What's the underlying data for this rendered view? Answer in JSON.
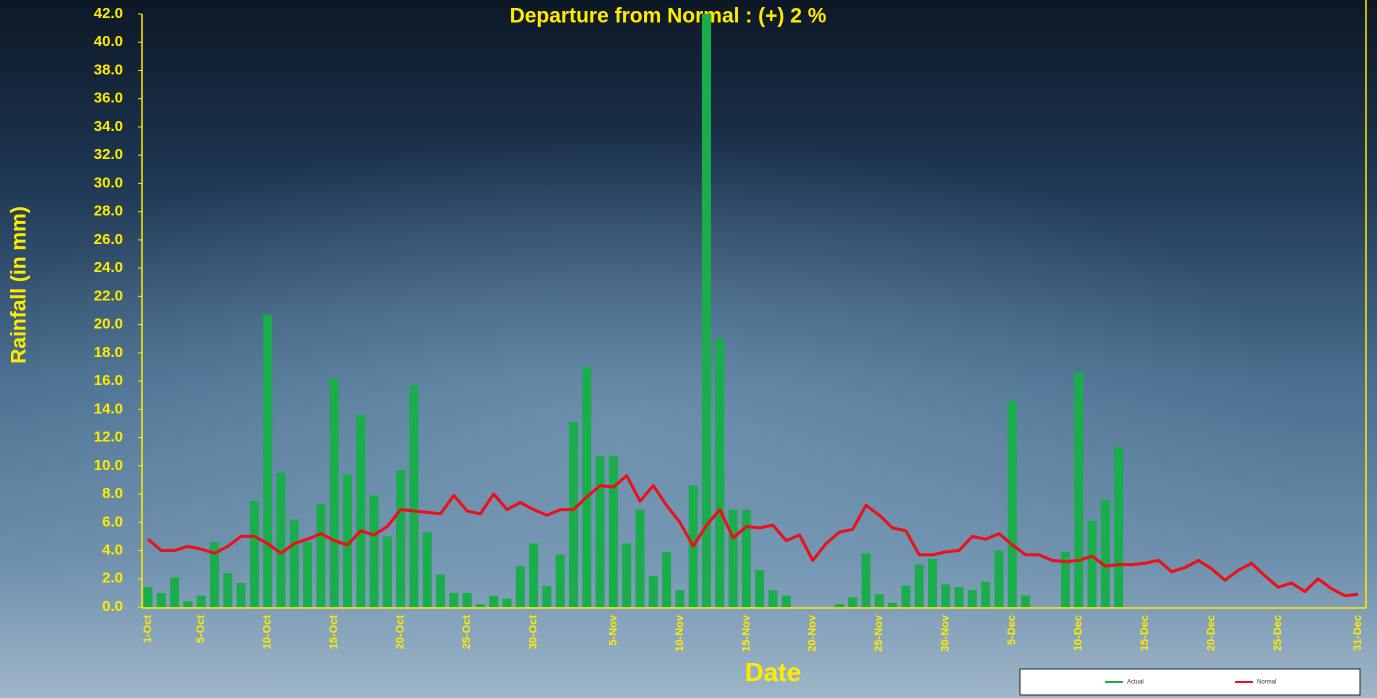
{
  "chart_data": {
    "type": "bar-line",
    "title": "Departure from Normal : (+) 2 %",
    "y_label": "Rainfall (in mm)",
    "x_label": "Date",
    "categories": [
      "1-Oct",
      null,
      null,
      null,
      "5-Oct",
      null,
      null,
      null,
      null,
      "10-Oct",
      null,
      null,
      null,
      null,
      "15-Oct",
      null,
      null,
      null,
      null,
      "20-Oct",
      null,
      null,
      null,
      null,
      "25-Oct",
      null,
      null,
      null,
      null,
      "30-Oct",
      null,
      null,
      null,
      null,
      null,
      "5-Nov",
      null,
      null,
      null,
      null,
      "10-Nov",
      null,
      null,
      null,
      null,
      "15-Nov",
      null,
      null,
      null,
      null,
      "20-Nov",
      null,
      null,
      null,
      null,
      "25-Nov",
      null,
      null,
      null,
      null,
      "30-Nov",
      null,
      null,
      null,
      null,
      "5-Dec",
      null,
      null,
      null,
      null,
      "10-Dec",
      null,
      null,
      null,
      null,
      "15-Dec",
      null,
      null,
      null,
      null,
      "20-Dec",
      null,
      null,
      null,
      null,
      "25-Dec",
      null,
      null,
      null,
      null,
      null,
      "31-Dec"
    ],
    "series": [
      {
        "name": "Actual",
        "type": "bar",
        "color": "#1aad4b",
        "values": [
          1.4,
          1.0,
          2.1,
          0.4,
          0.8,
          4.6,
          2.4,
          1.7,
          7.5,
          20.7,
          9.5,
          6.2,
          4.6,
          7.3,
          16.2,
          9.4,
          13.6,
          7.9,
          5.0,
          9.7,
          15.7,
          5.3,
          2.3,
          1.0,
          1.0,
          0.2,
          0.8,
          0.6,
          2.9,
          4.5,
          1.5,
          3.7,
          13.1,
          17.0,
          10.7,
          10.7,
          4.5,
          6.9,
          2.2,
          3.9,
          1.2,
          8.6,
          42.0,
          19.0,
          6.9,
          6.9,
          2.6,
          1.2,
          0.8,
          0,
          0,
          0,
          0.2,
          0.7,
          3.8,
          0.9,
          0.3,
          1.5,
          3.0,
          3.4,
          1.6,
          1.4,
          1.2,
          1.8,
          4.0,
          14.6,
          0.8,
          0,
          0,
          3.9,
          16.6,
          6.1,
          7.6,
          11.3,
          null,
          null,
          null,
          null,
          null,
          null,
          null,
          null,
          null,
          null,
          null,
          null,
          null,
          null,
          null,
          null,
          null,
          null
        ]
      },
      {
        "name": "Normal",
        "type": "line",
        "color": "#e8121b",
        "values": [
          4.8,
          4.0,
          4.0,
          4.3,
          4.1,
          3.8,
          4.3,
          5.0,
          5.0,
          4.5,
          3.8,
          4.5,
          4.8,
          5.2,
          4.7,
          4.4,
          5.4,
          5.1,
          5.7,
          6.9,
          6.8,
          6.7,
          6.6,
          7.9,
          6.8,
          6.6,
          8.0,
          6.9,
          7.4,
          6.9,
          6.5,
          6.9,
          6.9,
          7.8,
          8.6,
          8.5,
          9.3,
          7.5,
          8.6,
          7.2,
          6.0,
          4.3,
          5.8,
          6.9,
          4.9,
          5.7,
          5.6,
          5.8,
          4.7,
          5.1,
          3.3,
          4.5,
          5.3,
          5.5,
          7.2,
          6.5,
          5.6,
          5.4,
          3.7,
          3.7,
          3.9,
          4.0,
          5.0,
          4.8,
          5.2,
          4.4,
          3.7,
          3.7,
          3.3,
          3.2,
          3.3,
          3.6,
          2.9,
          3.0,
          3.0,
          3.1,
          3.3,
          2.5,
          2.8,
          3.3,
          2.7,
          1.9,
          2.6,
          3.1,
          2.2,
          1.4,
          1.7,
          1.1,
          2.0,
          1.3,
          0.8,
          0.9
        ]
      }
    ],
    "ylim": [
      0,
      42
    ],
    "yticks": [
      {
        "value": 0,
        "label": "0.0"
      },
      {
        "value": 2,
        "label": "2.0"
      },
      {
        "value": 4,
        "label": "4.0"
      },
      {
        "value": 6,
        "label": "6.0"
      },
      {
        "value": 8,
        "label": "8.0"
      },
      {
        "value": 10,
        "label": "10.0"
      },
      {
        "value": 12,
        "label": "12.0"
      },
      {
        "value": 14,
        "label": "14.0"
      },
      {
        "value": 16,
        "label": "16.0"
      },
      {
        "value": 18,
        "label": "18.0"
      },
      {
        "value": 20,
        "label": "20.0"
      },
      {
        "value": 22,
        "label": "22.0"
      },
      {
        "value": 24,
        "label": "24.0"
      },
      {
        "value": 26,
        "label": "26.0"
      },
      {
        "value": 28,
        "label": "28.0"
      },
      {
        "value": 30,
        "label": "30.0"
      },
      {
        "value": 32,
        "label": "32.0"
      },
      {
        "value": 34,
        "label": "34.0"
      },
      {
        "value": 36,
        "label": "36.0"
      },
      {
        "value": 38,
        "label": "38.0"
      },
      {
        "value": 40,
        "label": "40.0"
      },
      {
        "value": 42,
        "label": "42.0"
      }
    ],
    "grid": false
  }
}
